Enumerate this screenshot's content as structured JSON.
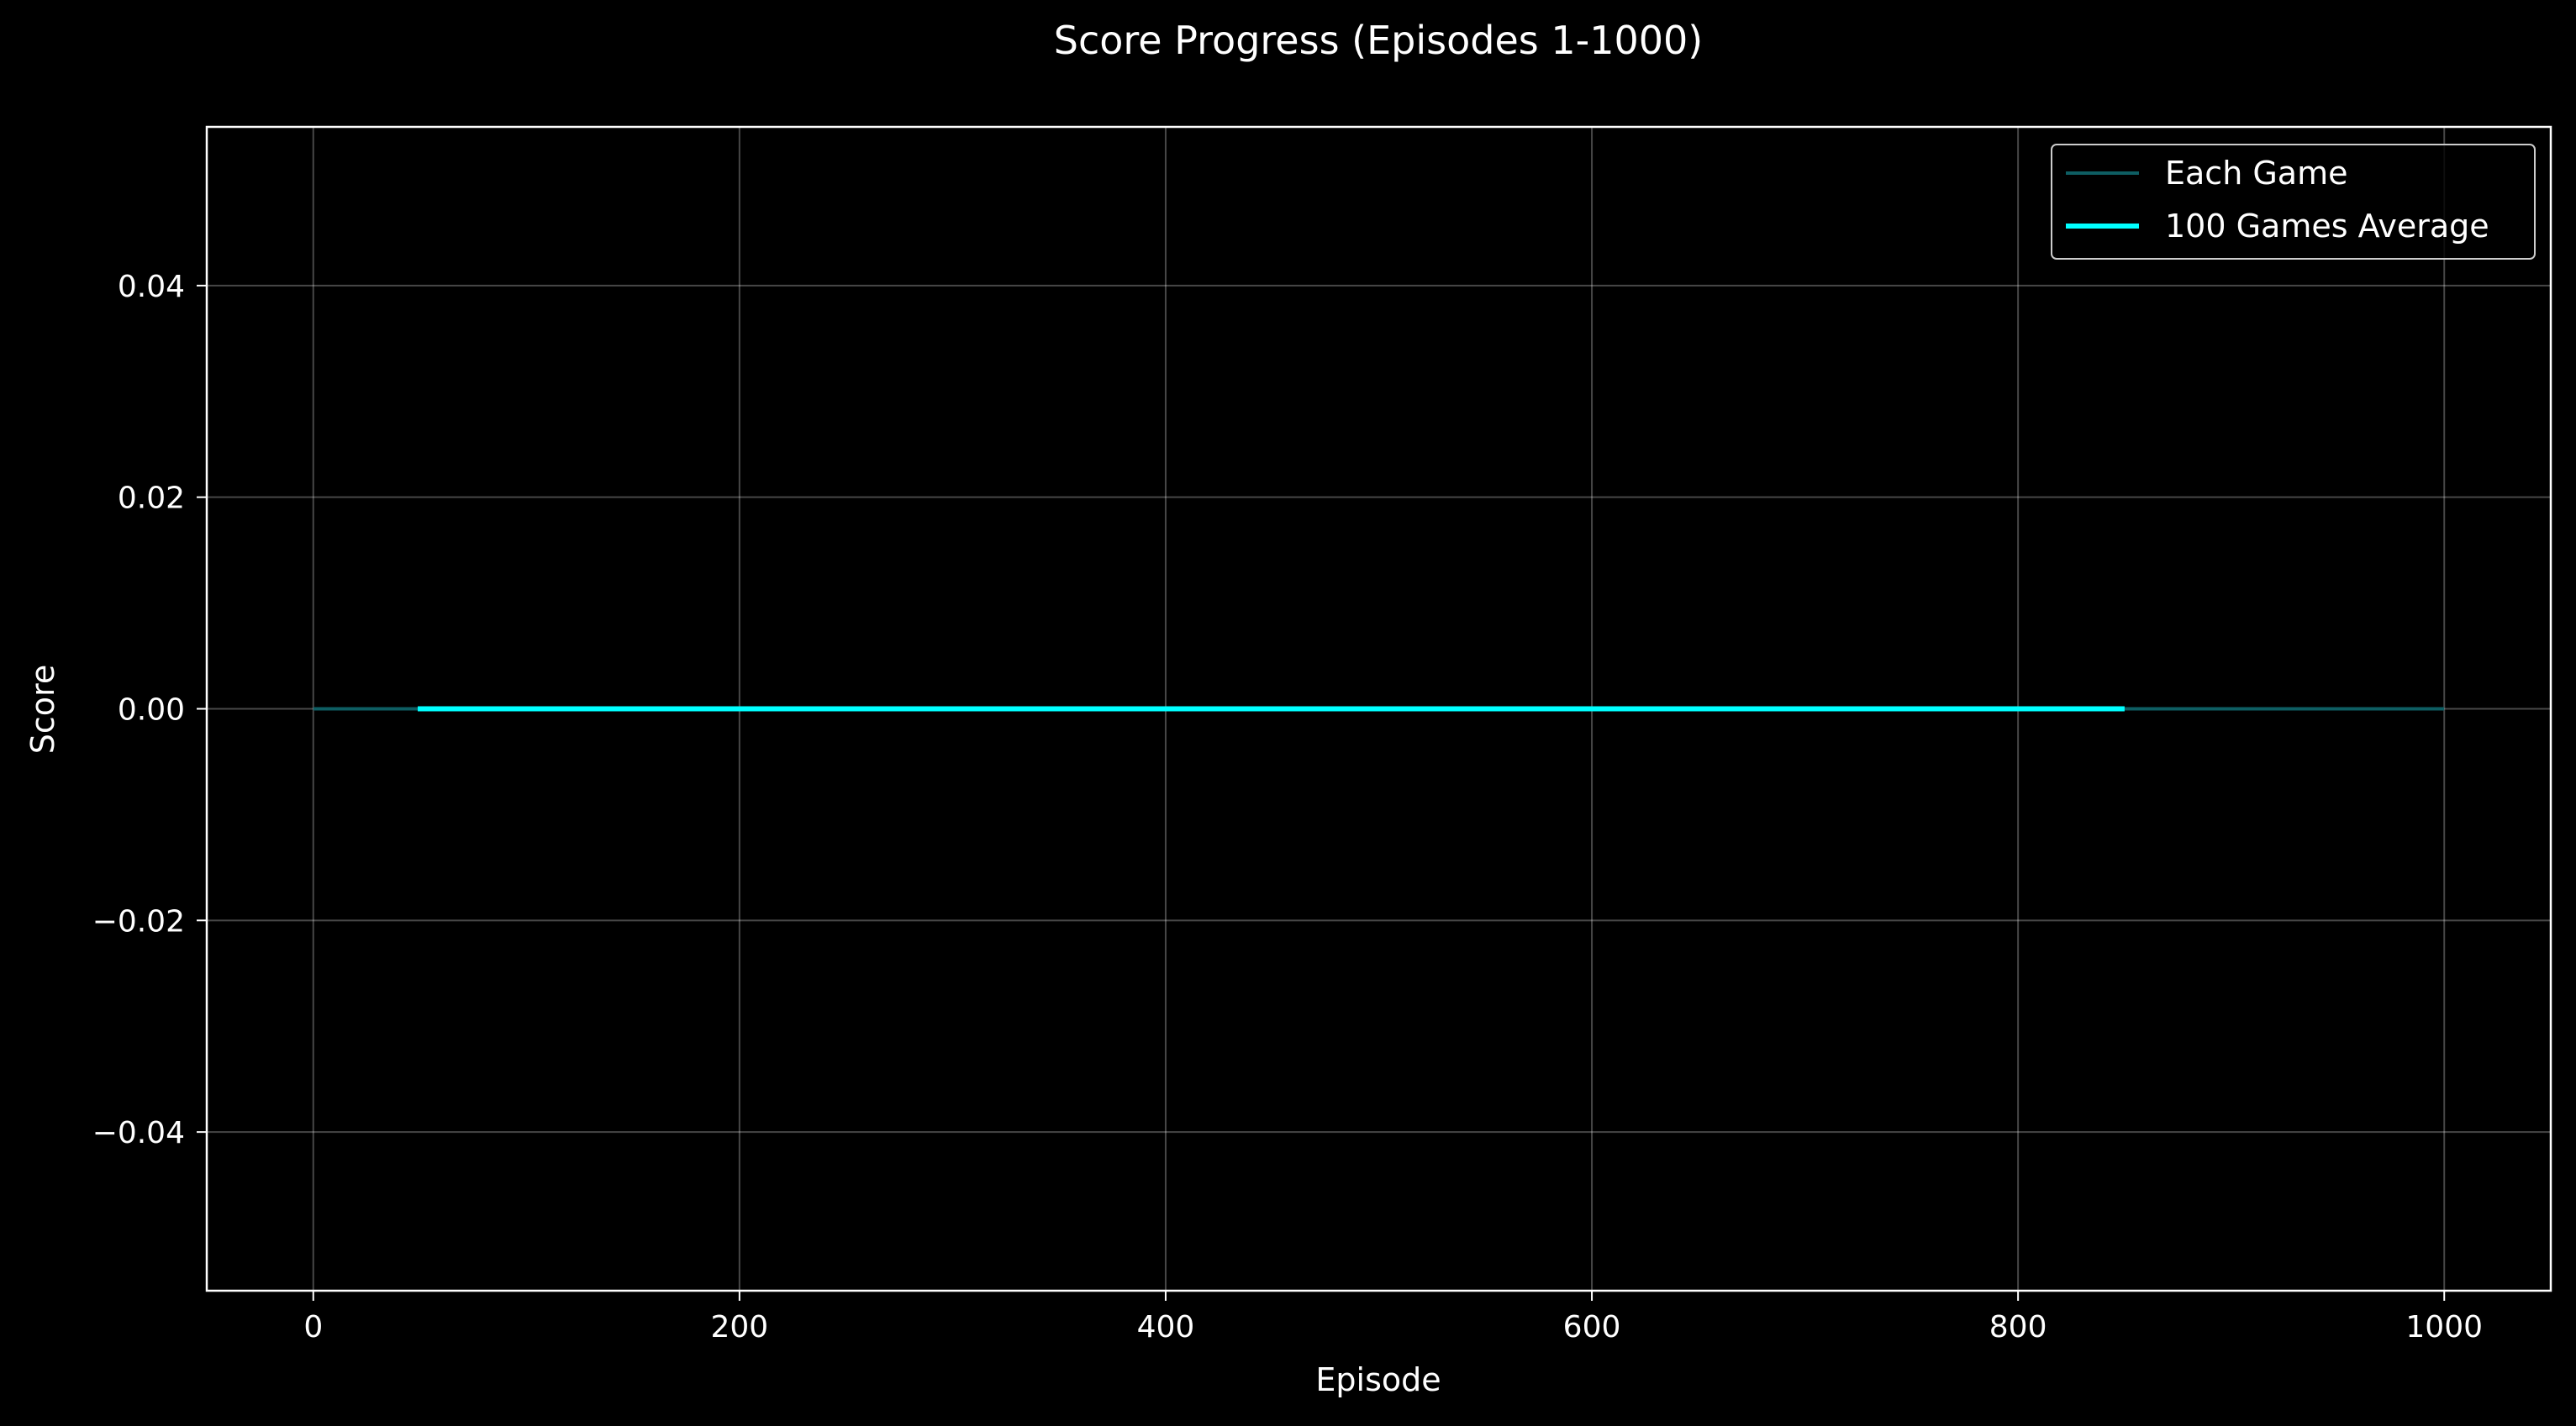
{
  "chart_data": {
    "type": "line",
    "title": "Score Progress (Episodes 1-1000)",
    "xlabel": "Episode",
    "ylabel": "Score",
    "xlim": [
      -50,
      1050
    ],
    "ylim": [
      -0.055,
      0.055
    ],
    "xticks": [
      0,
      200,
      400,
      600,
      800,
      1000
    ],
    "xtick_labels": [
      "0",
      "200",
      "400",
      "600",
      "800",
      "1000"
    ],
    "yticks": [
      0.04,
      0.02,
      0.0,
      -0.02,
      -0.04
    ],
    "ytick_labels": [
      "0.04",
      "0.02",
      "0.00",
      "−0.02",
      "−0.04"
    ],
    "grid": true,
    "legend_position": "top-right",
    "background": "#000000",
    "series": [
      {
        "name": "Each Game",
        "color": "#0e5e63",
        "x": [
          0,
          1000
        ],
        "y": [
          0,
          0
        ]
      },
      {
        "name": "100 Games Average",
        "color": "#00ffff",
        "x": [
          49,
          850
        ],
        "y": [
          0,
          0
        ]
      }
    ]
  }
}
